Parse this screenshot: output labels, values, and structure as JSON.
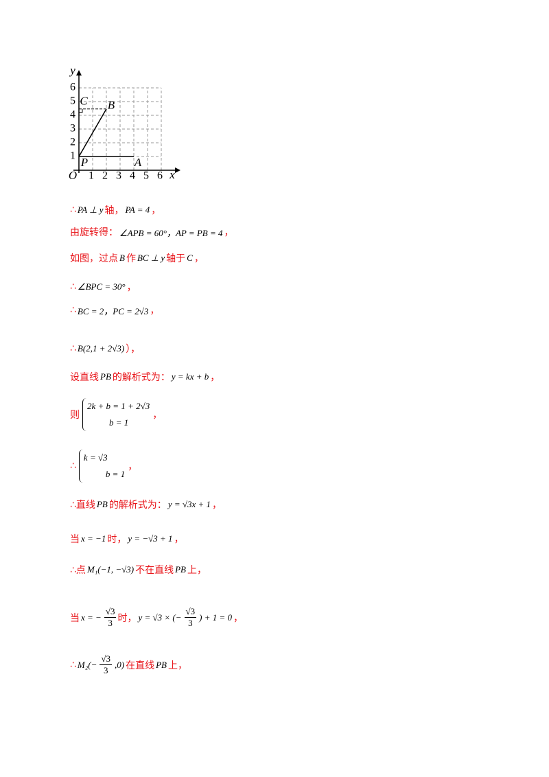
{
  "figure": {
    "y_axis": "y",
    "x_axis": "x",
    "origin": "O",
    "x_ticks": [
      "1",
      "2",
      "3",
      "4",
      "5",
      "6"
    ],
    "y_ticks": [
      "1",
      "2",
      "3",
      "4",
      "5",
      "6"
    ],
    "points": {
      "P": "P",
      "A": "A",
      "B": "B",
      "C": "C"
    }
  },
  "lines": [
    [
      {
        "text": "∴"
      },
      {
        "math": "PA ⊥ y"
      },
      {
        "text": "轴，"
      },
      {
        "math": "PA = 4"
      },
      {
        "text": "，"
      }
    ],
    [
      {
        "text": "由旋转得："
      },
      {
        "math": "∠APB = 60°，AP = PB = 4"
      },
      {
        "text": "，"
      }
    ],
    [
      {
        "text": "如图，过点"
      },
      {
        "math": "B"
      },
      {
        "text": "作"
      },
      {
        "math": "BC ⊥ y"
      },
      {
        "text": "轴于"
      },
      {
        "math": "C"
      },
      {
        "text": "，"
      }
    ],
    [
      {
        "text": "∴"
      },
      {
        "math": "∠BPC = 30°"
      },
      {
        "text": "，"
      }
    ],
    [
      {
        "text": "∴"
      },
      {
        "math": "BC = 2，PC = 2√3"
      },
      {
        "text": "，"
      }
    ],
    [
      {
        "text": "∴"
      },
      {
        "math": "B(2,1 + 2√3)"
      },
      {
        "text": "），"
      }
    ],
    [
      {
        "text": "设直线"
      },
      {
        "math": "PB"
      },
      {
        "text": "的解析式为："
      },
      {
        "math": "y = kx + b"
      },
      {
        "text": "，"
      }
    ],
    [
      {
        "text": "则"
      },
      {
        "cases": [
          "2k + b = 1 + 2√3",
          "b = 1"
        ]
      },
      {
        "text": "，"
      }
    ],
    [
      {
        "text": "∴"
      },
      {
        "cases": [
          "k = √3",
          "b = 1"
        ]
      },
      {
        "text": "，"
      }
    ],
    [
      {
        "text": "∴直线"
      },
      {
        "math": "PB"
      },
      {
        "text": "的解析式为："
      },
      {
        "math": "y = √3x + 1"
      },
      {
        "text": "，"
      }
    ],
    [
      {
        "text": "当"
      },
      {
        "math": "x = −1"
      },
      {
        "text": "时，"
      },
      {
        "math": "y = −√3 + 1"
      },
      {
        "text": "，"
      }
    ],
    [
      {
        "text": "∴点"
      },
      {
        "math": "M₁(−1, −√3)"
      },
      {
        "text": "不在直线"
      },
      {
        "math": "PB"
      },
      {
        "text": "上，"
      }
    ],
    [
      {
        "text": "当"
      },
      {
        "math": "x = −"
      },
      {
        "num": "√3",
        "den": "3"
      },
      {
        "text": "时，"
      },
      {
        "math": "y = √3 × (−"
      },
      {
        "num": "√3",
        "den": "3"
      },
      {
        "math": ") + 1 = 0"
      },
      {
        "text": "，"
      }
    ],
    [
      {
        "text": "∴"
      },
      {
        "math": "M₂(−"
      },
      {
        "num": "√3",
        "den": "3"
      },
      {
        "math": ",0)"
      },
      {
        "text": "在直线"
      },
      {
        "math": "PB"
      },
      {
        "text": "上，"
      }
    ]
  ]
}
